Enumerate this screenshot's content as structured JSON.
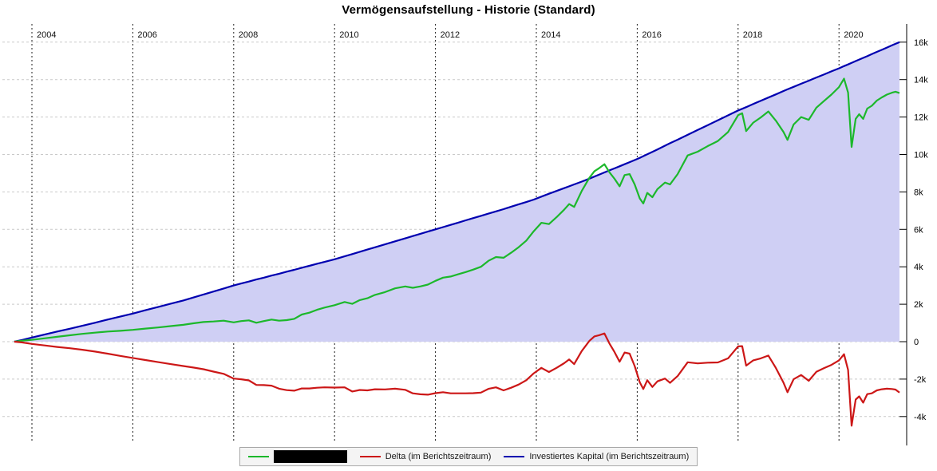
{
  "title": "Vermögensaufstellung - Historie (Standard)",
  "legend": {
    "items": [
      {
        "key": "portfolio-value",
        "color": "#1cb82b",
        "label": "",
        "redacted": true
      },
      {
        "key": "delta",
        "color": "#cc1717",
        "label": "Delta (im Berichtszeitraum)",
        "redacted": false
      },
      {
        "key": "invested-capital",
        "color": "#0000b0",
        "label": "Investiertes Kapital (im Berichtszeitraum)",
        "redacted": false
      }
    ]
  },
  "chart_data": {
    "type": "line",
    "title": "Vermögensaufstellung - Historie (Standard)",
    "xlabel": "",
    "ylabel": "",
    "x_unit": "year",
    "y_unit": "thousands (k)",
    "xlim": [
      2003.65,
      2021.2
    ],
    "ylim": [
      -5.5,
      17.0
    ],
    "grid": {
      "vertical": "black-dashed",
      "horizontal": "gray-dashed"
    },
    "legend_position": "bottom-center",
    "x_axis": {
      "ticks": [
        {
          "value": 2004,
          "label": "2004"
        },
        {
          "value": 2006,
          "label": "2006"
        },
        {
          "value": 2008,
          "label": "2008"
        },
        {
          "value": 2010,
          "label": "2010"
        },
        {
          "value": 2012,
          "label": "2012"
        },
        {
          "value": 2014,
          "label": "2014"
        },
        {
          "value": 2016,
          "label": "2016"
        },
        {
          "value": 2018,
          "label": "2018"
        },
        {
          "value": 2020,
          "label": "2020"
        }
      ]
    },
    "y_axis": {
      "ticks": [
        {
          "value": 16,
          "label": "16k"
        },
        {
          "value": 14,
          "label": "14k"
        },
        {
          "value": 12,
          "label": "12k"
        },
        {
          "value": 10,
          "label": "10k"
        },
        {
          "value": 8,
          "label": "8k"
        },
        {
          "value": 6,
          "label": "6k"
        },
        {
          "value": 4,
          "label": "4k"
        },
        {
          "value": 2,
          "label": "2k"
        },
        {
          "value": 0,
          "label": "0"
        },
        {
          "value": -2,
          "label": "-2k"
        },
        {
          "value": -4,
          "label": "-4k"
        }
      ]
    },
    "x": [
      2003.65,
      2003.8,
      2004.0,
      2004.25,
      2004.5,
      2004.75,
      2005.0,
      2005.25,
      2005.5,
      2005.75,
      2006.0,
      2006.25,
      2006.5,
      2006.75,
      2007.0,
      2007.2,
      2007.4,
      2007.6,
      2007.8,
      2008.0,
      2008.15,
      2008.3,
      2008.45,
      2008.6,
      2008.75,
      2008.9,
      2009.05,
      2009.2,
      2009.35,
      2009.5,
      2009.65,
      2009.8,
      2010.0,
      2010.2,
      2010.35,
      2010.5,
      2010.65,
      2010.8,
      2011.0,
      2011.2,
      2011.4,
      2011.55,
      2011.7,
      2011.85,
      2012.0,
      2012.15,
      2012.3,
      2012.45,
      2012.6,
      2012.75,
      2012.9,
      2013.05,
      2013.2,
      2013.35,
      2013.5,
      2013.65,
      2013.8,
      2013.95,
      2014.1,
      2014.25,
      2014.4,
      2014.55,
      2014.65,
      2014.75,
      2014.9,
      2015.05,
      2015.15,
      2015.25,
      2015.35,
      2015.45,
      2015.55,
      2015.65,
      2015.75,
      2015.85,
      2015.95,
      2016.05,
      2016.12,
      2016.2,
      2016.3,
      2016.4,
      2016.55,
      2016.65,
      2016.8,
      2017.0,
      2017.2,
      2017.4,
      2017.6,
      2017.8,
      2018.0,
      2018.08,
      2018.16,
      2018.3,
      2018.45,
      2018.6,
      2018.75,
      2018.9,
      2018.98,
      2019.1,
      2019.25,
      2019.4,
      2019.55,
      2019.7,
      2019.85,
      2020.0,
      2020.1,
      2020.18,
      2020.25,
      2020.33,
      2020.4,
      2020.48,
      2020.56,
      2020.65,
      2020.75,
      2020.85,
      2020.95,
      2021.05,
      2021.12,
      2021.2
    ],
    "series": [
      {
        "key": "portfolio-value",
        "name": "[redacted portfolio name]",
        "redacted": true,
        "color": "#1cb82b",
        "values": [
          0,
          0.05,
          0.1,
          0.18,
          0.26,
          0.34,
          0.42,
          0.48,
          0.54,
          0.58,
          0.63,
          0.7,
          0.76,
          0.83,
          0.9,
          0.98,
          1.05,
          1.08,
          1.12,
          1.03,
          1.1,
          1.14,
          1.01,
          1.1,
          1.18,
          1.12,
          1.15,
          1.22,
          1.45,
          1.55,
          1.7,
          1.82,
          1.95,
          2.12,
          2.02,
          2.22,
          2.32,
          2.5,
          2.65,
          2.85,
          2.95,
          2.88,
          2.95,
          3.05,
          3.25,
          3.42,
          3.48,
          3.6,
          3.72,
          3.85,
          4.0,
          4.32,
          4.52,
          4.48,
          4.75,
          5.05,
          5.4,
          5.9,
          6.35,
          6.28,
          6.65,
          7.05,
          7.35,
          7.2,
          8.05,
          8.75,
          9.1,
          9.28,
          9.48,
          9.05,
          8.7,
          8.3,
          8.9,
          8.95,
          8.4,
          7.65,
          7.38,
          7.95,
          7.72,
          8.15,
          8.5,
          8.4,
          8.95,
          9.95,
          10.15,
          10.45,
          10.72,
          11.2,
          12.1,
          12.2,
          11.25,
          11.7,
          11.98,
          12.3,
          11.8,
          11.2,
          10.78,
          11.6,
          12.0,
          11.85,
          12.5,
          12.85,
          13.2,
          13.6,
          14.05,
          13.3,
          10.4,
          11.9,
          12.15,
          11.9,
          12.45,
          12.6,
          12.88,
          13.05,
          13.2,
          13.3,
          13.35,
          13.28
        ]
      },
      {
        "key": "delta",
        "name": "Delta (im Berichtszeitraum)",
        "redacted": false,
        "color": "#cc1717",
        "values": [
          0,
          -0.04,
          -0.12,
          -0.2,
          -0.28,
          -0.35,
          -0.43,
          -0.53,
          -0.64,
          -0.76,
          -0.87,
          -0.98,
          -1.09,
          -1.2,
          -1.3,
          -1.38,
          -1.47,
          -1.6,
          -1.72,
          -1.97,
          -2.01,
          -2.07,
          -2.31,
          -2.32,
          -2.35,
          -2.51,
          -2.59,
          -2.62,
          -2.5,
          -2.5,
          -2.46,
          -2.44,
          -2.45,
          -2.44,
          -2.66,
          -2.58,
          -2.6,
          -2.54,
          -2.55,
          -2.51,
          -2.57,
          -2.76,
          -2.81,
          -2.83,
          -2.75,
          -2.7,
          -2.76,
          -2.76,
          -2.76,
          -2.75,
          -2.72,
          -2.52,
          -2.44,
          -2.6,
          -2.46,
          -2.29,
          -2.06,
          -1.69,
          -1.4,
          -1.62,
          -1.4,
          -1.15,
          -0.95,
          -1.2,
          -0.5,
          0.04,
          0.28,
          0.35,
          0.44,
          -0.1,
          -0.56,
          -1.07,
          -0.58,
          -0.64,
          -1.3,
          -2.17,
          -2.53,
          -2.06,
          -2.42,
          -2.12,
          -1.97,
          -2.2,
          -1.84,
          -1.1,
          -1.16,
          -1.12,
          -1.11,
          -0.89,
          -0.25,
          -0.24,
          -1.28,
          -1.0,
          -0.89,
          -0.74,
          -1.41,
          -2.19,
          -2.7,
          -2.01,
          -1.78,
          -2.09,
          -1.61,
          -1.42,
          -1.24,
          -1.0,
          -0.67,
          -1.51,
          -4.49,
          -3.09,
          -2.92,
          -3.26,
          -2.8,
          -2.76,
          -2.6,
          -2.54,
          -2.51,
          -2.53,
          -2.56,
          -2.72
        ]
      },
      {
        "key": "invested-capital",
        "name": "Investiertes Kapital (im Berichtszeitraum)",
        "redacted": false,
        "color": "#0000b0",
        "fill": "#cfcff4",
        "fill_to": 0,
        "values": [
          0,
          0.09,
          0.22,
          0.38,
          0.54,
          0.69,
          0.85,
          1.01,
          1.18,
          1.34,
          1.5,
          1.68,
          1.85,
          2.03,
          2.2,
          2.36,
          2.52,
          2.68,
          2.84,
          3.0,
          3.11,
          3.21,
          3.32,
          3.42,
          3.53,
          3.63,
          3.74,
          3.84,
          3.95,
          4.05,
          4.16,
          4.26,
          4.4,
          4.56,
          4.68,
          4.8,
          4.92,
          5.04,
          5.2,
          5.36,
          5.52,
          5.64,
          5.76,
          5.88,
          6.0,
          6.12,
          6.24,
          6.36,
          6.48,
          6.6,
          6.72,
          6.84,
          6.96,
          7.08,
          7.21,
          7.34,
          7.46,
          7.59,
          7.75,
          7.9,
          8.05,
          8.2,
          8.3,
          8.4,
          8.55,
          8.71,
          8.82,
          8.93,
          9.04,
          9.15,
          9.26,
          9.37,
          9.48,
          9.59,
          9.7,
          9.82,
          9.91,
          10.01,
          10.14,
          10.27,
          10.47,
          10.6,
          10.79,
          11.05,
          11.31,
          11.57,
          11.83,
          12.09,
          12.35,
          12.44,
          12.53,
          12.7,
          12.87,
          13.04,
          13.21,
          13.39,
          13.48,
          13.61,
          13.78,
          13.94,
          14.11,
          14.27,
          14.44,
          14.6,
          14.72,
          14.81,
          14.89,
          14.99,
          15.07,
          15.16,
          15.25,
          15.36,
          15.48,
          15.59,
          15.71,
          15.83,
          15.91,
          16.0
        ]
      }
    ]
  }
}
